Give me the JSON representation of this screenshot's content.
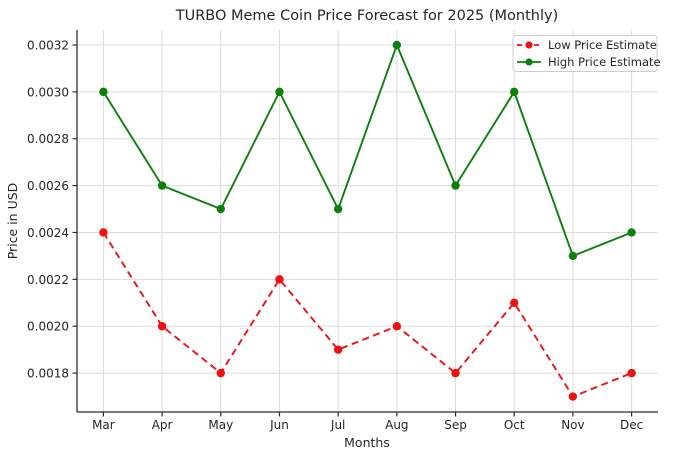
{
  "chart_data": {
    "type": "line",
    "title": "TURBO Meme Coin Price Forecast for 2025 (Monthly)",
    "xlabel": "Months",
    "ylabel": "Price in USD",
    "categories": [
      "Mar",
      "Apr",
      "May",
      "Jun",
      "Jul",
      "Aug",
      "Sep",
      "Oct",
      "Nov",
      "Dec"
    ],
    "series": [
      {
        "name": "Low Price Estimate",
        "color": "#f01010",
        "line_style": "dashed",
        "marker": "circle",
        "values": [
          0.0024,
          0.002,
          0.0018,
          0.0022,
          0.0019,
          0.002,
          0.0018,
          0.0021,
          0.0017,
          0.0018
        ]
      },
      {
        "name": "High Price Estimate",
        "color": "#0b800b",
        "line_style": "solid",
        "marker": "circle",
        "values": [
          0.003,
          0.0026,
          0.0025,
          0.003,
          0.0025,
          0.0032,
          0.0026,
          0.003,
          0.0023,
          0.0024
        ]
      }
    ],
    "yticks": [
      0.0018,
      0.002,
      0.0022,
      0.0024,
      0.0026,
      0.0028,
      0.003,
      0.0032
    ],
    "ytick_labels": [
      "0.0018",
      "0.0020",
      "0.0022",
      "0.0024",
      "0.0026",
      "0.0028",
      "0.0030",
      "0.0032"
    ],
    "ylim": [
      0.001634,
      0.003264
    ],
    "grid": true,
    "legend_position": "upper right",
    "colors": {
      "grid": "#dcdcdc",
      "axis": "#2b2b2b",
      "text": "#262626",
      "legend_border": "#cccccc",
      "background": "#ffffff"
    }
  }
}
